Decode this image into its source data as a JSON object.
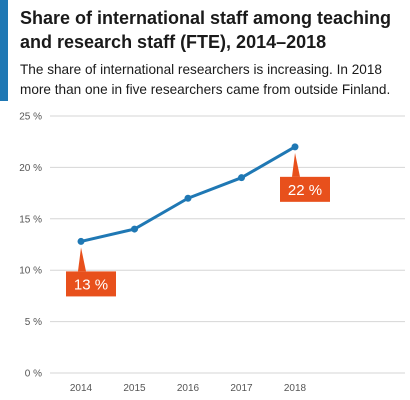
{
  "chart_data": {
    "type": "line",
    "title": "Share of international staff among teaching and research staff (FTE), 2014–2018",
    "subtitle": "The share of international researchers is increasing. In 2018 more than one in five researchers came from outside Finland.",
    "x": [
      "2014",
      "2015",
      "2016",
      "2017",
      "2018"
    ],
    "series": [
      {
        "values": [
          12.8,
          14.0,
          17.0,
          19.0,
          22.0
        ]
      }
    ],
    "ylim": [
      0,
      25
    ],
    "yticks": [
      0,
      5,
      10,
      15,
      20,
      25
    ],
    "ytick_labels": [
      "0 %",
      "5 %",
      "10 %",
      "15 %",
      "20 %",
      "25 %"
    ],
    "grid": true,
    "annotations": [
      {
        "label": "13 %",
        "point": 0
      },
      {
        "label": "22 %",
        "point": 4
      }
    ],
    "colors": {
      "line": "#1f78b4",
      "callout": "#e8501c",
      "grid": "#d6d6d6",
      "accent": "#1f78b4"
    }
  }
}
